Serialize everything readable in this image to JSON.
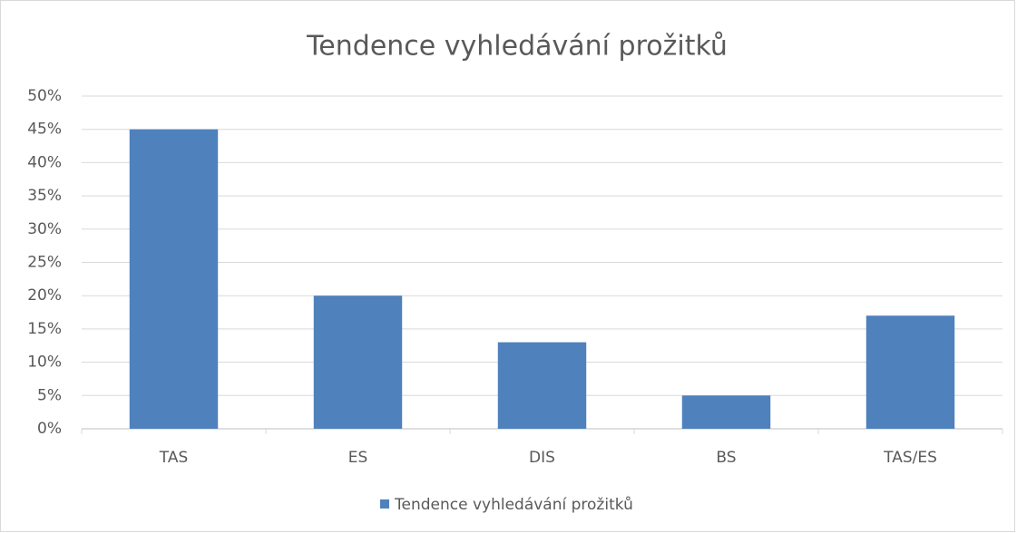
{
  "chart_data": {
    "type": "bar",
    "title": "Tendence vyhledávání prožitků",
    "categories": [
      "TAS",
      "ES",
      "DIS",
      "BS",
      "TAS/ES"
    ],
    "series": [
      {
        "name": "Tendence vyhledávání prožitků",
        "color": "#4f81bd",
        "values": [
          45,
          20,
          13,
          5,
          17
        ]
      }
    ],
    "ylim": [
      0,
      50
    ],
    "yticks": [
      {
        "value": 0,
        "label": "0%"
      },
      {
        "value": 5,
        "label": "5%"
      },
      {
        "value": 10,
        "label": "10%"
      },
      {
        "value": 15,
        "label": "15%"
      },
      {
        "value": 20,
        "label": "20%"
      },
      {
        "value": 25,
        "label": "25%"
      },
      {
        "value": 30,
        "label": "30%"
      },
      {
        "value": 35,
        "label": "35%"
      },
      {
        "value": 40,
        "label": "40%"
      },
      {
        "value": 45,
        "label": "45%"
      },
      {
        "value": 50,
        "label": "50%"
      }
    ],
    "grid": true,
    "legend": "bottom"
  }
}
